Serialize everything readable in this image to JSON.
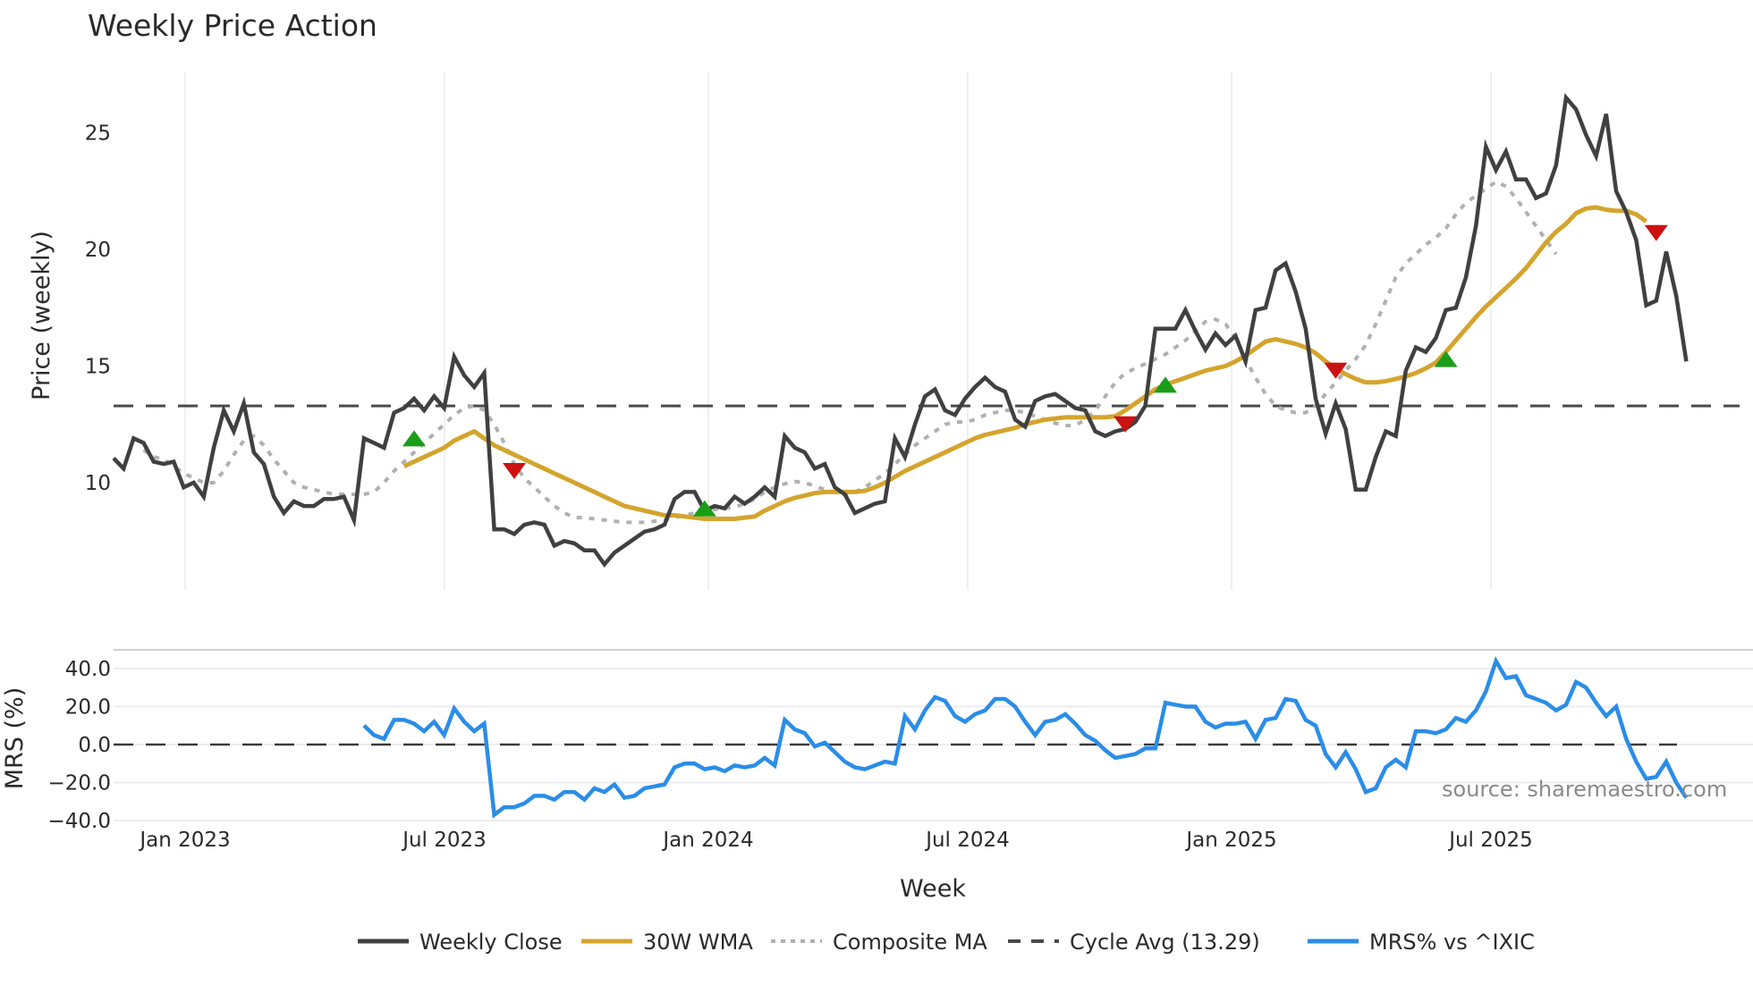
{
  "chart_data": {
    "type": "line",
    "title": "Weekly Price Action",
    "xlabel": "Week",
    "x_ticks": [
      "Jan 2023",
      "Jul 2023",
      "Jan 2024",
      "Jul 2024",
      "Jan 2025",
      "Jul 2025"
    ],
    "source": "source: sharemaestro.com",
    "panels": [
      {
        "name": "price",
        "ylabel": "Price (weekly)",
        "y_ticks": [
          10,
          15,
          20,
          25
        ],
        "ylim": [
          5.3,
          27.4
        ],
        "grid": "vertical",
        "reference_line": {
          "name": "Cycle Avg (13.29)",
          "value": 13.29,
          "style": "dashed",
          "color": "#4a4a4a"
        },
        "series": [
          {
            "name": "Weekly Close",
            "color": "#404040",
            "start_index": 0,
            "values": [
              11.05,
              10.6,
              11.9,
              11.7,
              10.9,
              10.8,
              10.9,
              9.8,
              10.0,
              9.4,
              11.5,
              13.1,
              12.2,
              13.4,
              11.3,
              10.8,
              9.4,
              8.7,
              9.2,
              9.0,
              9.0,
              9.3,
              9.3,
              9.4,
              8.4,
              11.9,
              11.7,
              11.5,
              13.0,
              13.2,
              13.6,
              13.1,
              13.7,
              13.2,
              15.4,
              14.6,
              14.1,
              14.7,
              8.0,
              8.0,
              7.8,
              8.2,
              8.3,
              8.2,
              7.3,
              7.5,
              7.4,
              7.1,
              7.1,
              6.5,
              7.0,
              7.3,
              7.6,
              7.9,
              8.0,
              8.2,
              9.3,
              9.6,
              9.6,
              8.8,
              9.0,
              8.9,
              9.4,
              9.1,
              9.4,
              9.8,
              9.4,
              12.0,
              11.5,
              11.3,
              10.6,
              10.8,
              9.8,
              9.5,
              8.7,
              8.9,
              9.1,
              9.2,
              11.9,
              11.1,
              12.5,
              13.7,
              14.0,
              13.1,
              12.9,
              13.6,
              14.1,
              14.5,
              14.1,
              13.9,
              12.7,
              12.4,
              13.5,
              13.7,
              13.8,
              13.5,
              13.2,
              13.1,
              12.2,
              12.0,
              12.2,
              12.3,
              12.6,
              13.3,
              16.6,
              16.6,
              16.6,
              17.4,
              16.5,
              15.7,
              16.4,
              15.9,
              16.3,
              15.2,
              17.4,
              17.5,
              19.1,
              19.4,
              18.2,
              16.6,
              13.6,
              12.1,
              13.4,
              12.3,
              9.7,
              9.7,
              11.1,
              12.2,
              12.0,
              14.8,
              15.8,
              15.6,
              16.2,
              17.4,
              17.5,
              18.8,
              21.0,
              24.4,
              23.4,
              24.2,
              23.0,
              23.0,
              22.2,
              22.4,
              23.6,
              26.5,
              26.0,
              24.9,
              24.0,
              25.8,
              22.5,
              21.6,
              20.4,
              17.6,
              17.8,
              19.9,
              18.0,
              15.2
            ]
          },
          {
            "name": "30W WMA",
            "color": "#d4a42c",
            "start_index": 29,
            "values": [
              10.7,
              10.9,
              11.1,
              11.3,
              11.5,
              11.8,
              12.0,
              12.2,
              11.9,
              11.6,
              11.4,
              11.2,
              11.0,
              10.8,
              10.6,
              10.4,
              10.2,
              10.0,
              9.8,
              9.6,
              9.4,
              9.2,
              9.0,
              8.9,
              8.8,
              8.7,
              8.6,
              8.6,
              8.55,
              8.5,
              8.45,
              8.45,
              8.45,
              8.45,
              8.5,
              8.55,
              8.8,
              9.0,
              9.2,
              9.35,
              9.45,
              9.55,
              9.6,
              9.6,
              9.6,
              9.6,
              9.65,
              9.8,
              10.0,
              10.25,
              10.5,
              10.7,
              10.9,
              11.1,
              11.3,
              11.5,
              11.7,
              11.9,
              12.05,
              12.15,
              12.25,
              12.35,
              12.5,
              12.6,
              12.7,
              12.75,
              12.8,
              12.8,
              12.8,
              12.8,
              12.8,
              12.85,
              13.1,
              13.4,
              13.7,
              14.0,
              14.2,
              14.35,
              14.5,
              14.65,
              14.8,
              14.9,
              15.0,
              15.2,
              15.45,
              15.75,
              16.05,
              16.15,
              16.05,
              15.95,
              15.8,
              15.55,
              15.2,
              14.9,
              14.65,
              14.45,
              14.3,
              14.3,
              14.35,
              14.45,
              14.55,
              14.7,
              14.9,
              15.15,
              15.6,
              16.1,
              16.6,
              17.1,
              17.55,
              17.95,
              18.35,
              18.75,
              19.2,
              19.75,
              20.3,
              20.75,
              21.1,
              21.55,
              21.75,
              21.8,
              21.7,
              21.65,
              21.65,
              21.5,
              21.2
            ]
          },
          {
            "name": "Composite MA",
            "color": "#b0b0b0",
            "start_index": 3,
            "values": [
              11.4,
              11.1,
              11.0,
              10.7,
              10.4,
              10.2,
              10.0,
              10.0,
              10.5,
              11.2,
              11.8,
              12.0,
              11.6,
              11.0,
              10.5,
              10.0,
              9.8,
              9.7,
              9.6,
              9.5,
              9.5,
              9.5,
              9.5,
              9.6,
              10.0,
              10.5,
              10.9,
              11.3,
              11.7,
              12.1,
              12.5,
              12.9,
              13.2,
              13.3,
              13.1,
              12.5,
              11.7,
              10.8,
              10.2,
              9.8,
              9.4,
              9.0,
              8.7,
              8.5,
              8.5,
              8.45,
              8.4,
              8.35,
              8.3,
              8.3,
              8.3,
              8.35,
              8.4,
              8.5,
              8.6,
              8.7,
              8.8,
              8.85,
              8.9,
              8.95,
              9.1,
              9.3,
              9.6,
              9.8,
              9.95,
              10.05,
              10.0,
              9.85,
              9.7,
              9.6,
              9.5,
              9.6,
              9.8,
              10.1,
              10.4,
              10.8,
              11.2,
              11.6,
              11.9,
              12.2,
              12.5,
              12.6,
              12.6,
              12.7,
              12.9,
              13.0,
              13.1,
              13.1,
              13.0,
              12.85,
              12.7,
              12.55,
              12.45,
              12.45,
              12.7,
              13.1,
              13.7,
              14.3,
              14.7,
              14.9,
              15.1,
              15.3,
              15.5,
              15.8,
              16.1,
              16.5,
              16.9,
              17.0,
              16.8,
              16.2,
              15.3,
              14.5,
              13.8,
              13.3,
              13.1,
              13.0,
              13.0,
              13.3,
              13.8,
              14.3,
              14.8,
              15.3,
              15.9,
              16.8,
              17.8,
              18.8,
              19.4,
              19.8,
              20.2,
              20.5,
              20.9,
              21.5,
              22.0,
              22.3,
              22.6,
              22.9,
              22.7,
              22.2,
              21.6,
              21.0,
              20.4,
              19.8
            ]
          }
        ],
        "signals": [
          {
            "type": "buy",
            "index": 30,
            "value": 11.9,
            "color": "#1a9e1a"
          },
          {
            "type": "sell",
            "index": 40,
            "value": 10.5,
            "color": "#cc1111"
          },
          {
            "type": "buy",
            "index": 59,
            "value": 8.9,
            "color": "#1a9e1a"
          },
          {
            "type": "sell",
            "index": 101,
            "value": 12.5,
            "color": "#cc1111"
          },
          {
            "type": "buy",
            "index": 105,
            "value": 14.2,
            "color": "#1a9e1a"
          },
          {
            "type": "sell",
            "index": 122,
            "value": 14.8,
            "color": "#cc1111"
          },
          {
            "type": "buy",
            "index": 133,
            "value": 15.3,
            "color": "#1a9e1a"
          },
          {
            "type": "sell",
            "index": 154,
            "value": 20.7,
            "color": "#cc1111"
          }
        ]
      },
      {
        "name": "mrs",
        "ylabel": "MRS (%)",
        "y_ticks": [
          "40.0",
          "20.0",
          "0.0",
          "−20.0",
          "−40.0"
        ],
        "y_tick_values": [
          40,
          20,
          0,
          -20,
          -40
        ],
        "ylim": [
          -41,
          49
        ],
        "grid": "horizontal",
        "reference_line": {
          "value": 0,
          "style": "dashed",
          "color": "#3a3a3a"
        },
        "series": [
          {
            "name": "MRS% vs ^IXIC",
            "color": "#2a8de8",
            "start_index": 25,
            "values": [
              10,
              5,
              3,
              13,
              13,
              11,
              7,
              12,
              5,
              19,
              12,
              7,
              11,
              -37,
              -33,
              -33,
              -31,
              -27,
              -27,
              -29,
              -25,
              -25,
              -29,
              -23,
              -25,
              -21,
              -28,
              -27,
              -23,
              -22,
              -21,
              -12,
              -10,
              -10,
              -13,
              -12,
              -14,
              -11,
              -12,
              -11,
              -7,
              -11,
              13,
              8,
              6,
              -1,
              1,
              -4,
              -9,
              -12,
              -13,
              -11,
              -9,
              -10,
              15,
              8,
              18,
              25,
              23,
              15,
              12,
              16,
              18,
              24,
              24,
              20,
              12,
              5,
              12,
              13,
              16,
              11,
              5,
              2,
              -3,
              -7,
              -6,
              -5,
              -2,
              -2,
              22,
              21,
              20,
              20,
              12,
              9,
              11,
              11,
              12,
              3,
              13,
              14,
              24,
              23,
              13,
              10,
              -5,
              -12,
              -4,
              -13,
              -25,
              -23,
              -12,
              -8,
              -12,
              7,
              7,
              6,
              8,
              14,
              12,
              18,
              28,
              44,
              35,
              36,
              26,
              24,
              22,
              18,
              21,
              33,
              30,
              22,
              15,
              20,
              3,
              -9,
              -18,
              -17,
              -9,
              -20,
              -28
            ]
          }
        ]
      }
    ],
    "legend": [
      {
        "label": "Weekly Close",
        "color": "#404040",
        "style": "solid"
      },
      {
        "label": "30W WMA",
        "color": "#d4a42c",
        "style": "solid"
      },
      {
        "label": "Composite MA",
        "color": "#b0b0b0",
        "style": "dotted"
      },
      {
        "label": "Cycle Avg (13.29)",
        "color": "#4a4a4a",
        "style": "dashed"
      },
      {
        "label": "MRS% vs ^IXIC",
        "color": "#2a8de8",
        "style": "solid"
      }
    ]
  }
}
